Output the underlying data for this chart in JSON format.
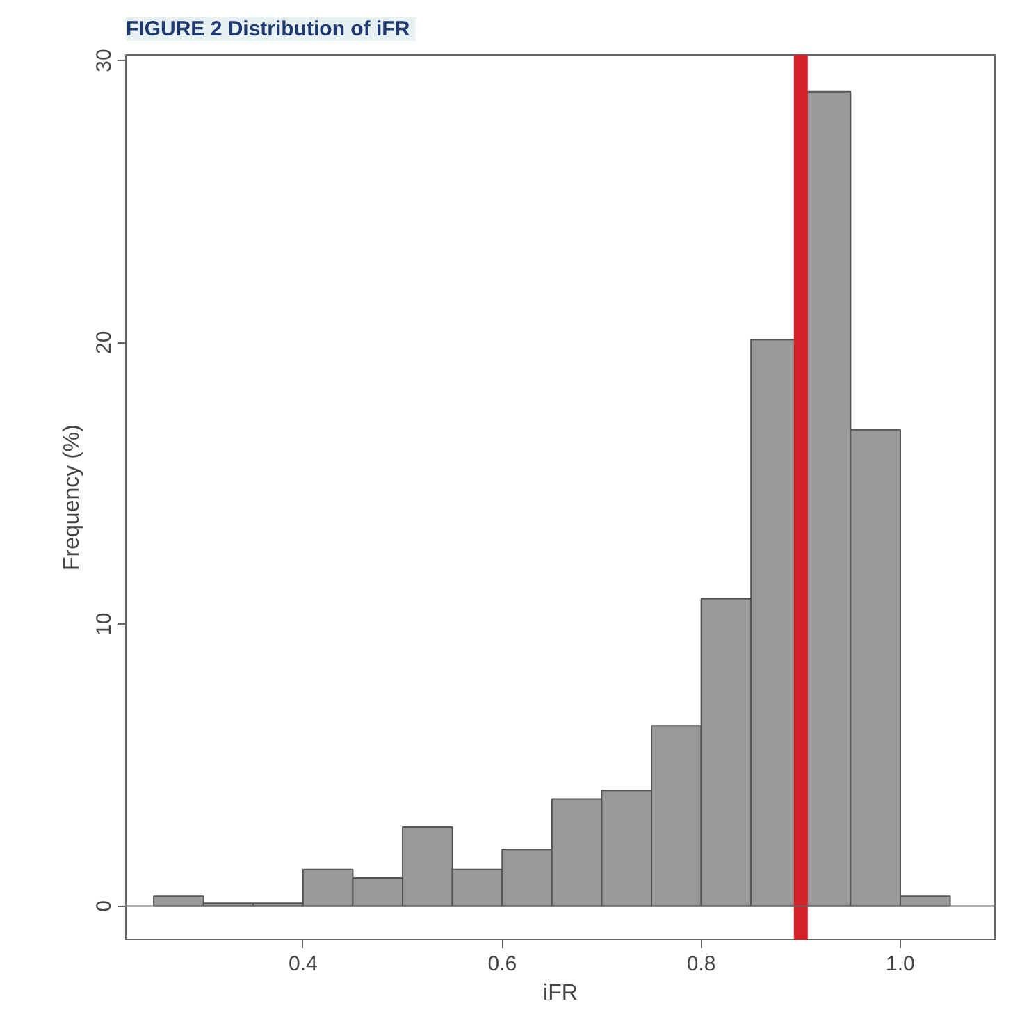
{
  "chart_data": {
    "type": "histogram",
    "title": "FIGURE 2  Distribution of iFR",
    "xlabel": "iFR",
    "ylabel": "Frequency (%)",
    "bins": [
      0.25,
      0.3,
      0.35,
      0.4,
      0.45,
      0.5,
      0.55,
      0.6,
      0.65,
      0.7,
      0.75,
      0.8,
      0.85,
      0.9,
      0.95,
      1.0,
      1.05
    ],
    "values": [
      0.35,
      0.1,
      0.1,
      1.3,
      1.0,
      2.8,
      1.3,
      2.0,
      3.8,
      4.1,
      6.4,
      10.9,
      20.1,
      28.9,
      16.9,
      0.35
    ],
    "color": "#999999",
    "xlim": [
      0.222,
      1.095
    ],
    "ylim": [
      -1.2,
      30.2
    ],
    "xticks": [
      0.4,
      0.6,
      0.8,
      {
        "value": 1.0,
        "label": "1.0"
      }
    ],
    "yticks": [
      0,
      10,
      20,
      30
    ],
    "ref_lines": [
      {
        "axis": "x",
        "value": 0.9,
        "label": null,
        "color": "#d42027"
      },
      {
        "axis": "y",
        "value": 0,
        "label": null,
        "color": "#666666"
      }
    ],
    "grid": false
  }
}
